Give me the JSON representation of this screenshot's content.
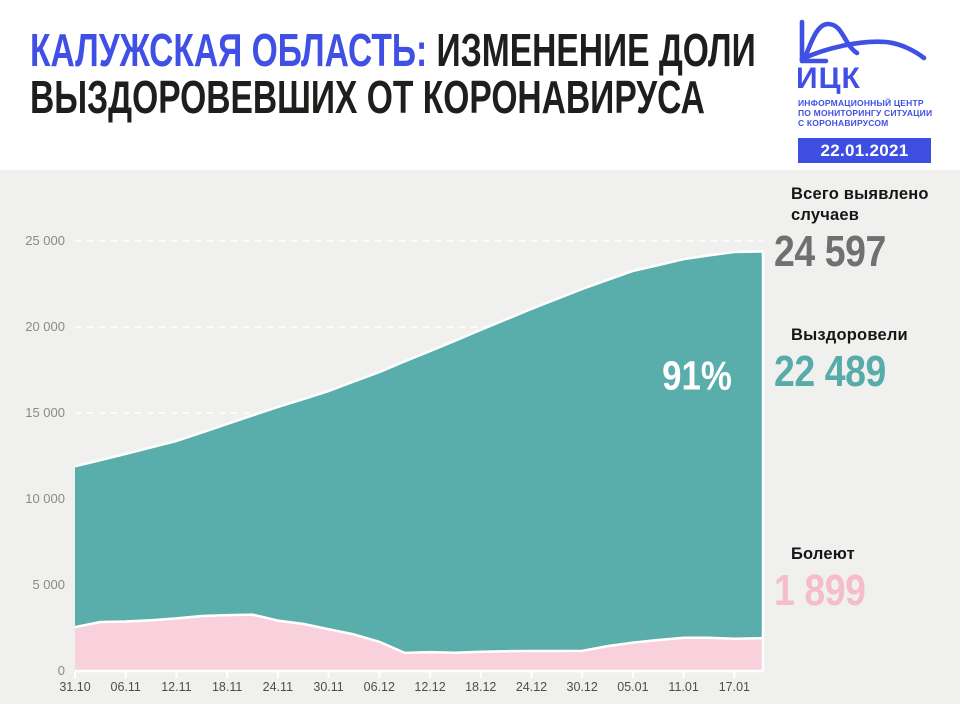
{
  "header": {
    "title_highlight": "КАЛУЖСКАЯ ОБЛАСТЬ:",
    "title_rest_line1": "ИЗМЕНЕНИЕ ДОЛИ",
    "title_line2": "ВЫЗДОРОВЕВШИХ ОТ КОРОНАВИРУСА",
    "logo": {
      "abbr": "ИЦК",
      "subtitle_line1": "ИНФОРМАЦИОННЫЙ ЦЕНТР",
      "subtitle_line2": "ПО МОНИТОРИНГУ СИТУАЦИИ",
      "subtitle_line3": "С КОРОНАВИРУСОМ"
    },
    "date_badge": "22.01.2021"
  },
  "stats": {
    "total": {
      "label": "Всего выявлено случаев",
      "value": "24 597"
    },
    "recovered": {
      "label": "Выздоровели",
      "value": "22 489"
    },
    "sick": {
      "label": "Болеют",
      "value": "1 899"
    }
  },
  "colors": {
    "accent_blue": "#4150e4",
    "badge_bg": "#3e4ee2",
    "title_dark": "#1e1e1c",
    "teal_fill": "#59adaa",
    "pink_fill": "#f9d1dc",
    "teal_number": "#57aba8",
    "pink_number": "#f5bccb",
    "grey_number": "#6e716f",
    "board_bg": "#f0f0ef",
    "grid_white": "#ffffff",
    "y_label_grey": "#8a8a8a",
    "x_label_grey": "#4d4d4d"
  },
  "chart_data": {
    "type": "area",
    "stacked": true,
    "title": "Изменение доли выздоровевших от коронавируса (Калужская область)",
    "share_label": "91%",
    "grid": "dashed-horizontal",
    "legend": "none",
    "ylim": [
      0,
      25000
    ],
    "y_ticks": [
      0,
      5000,
      10000,
      15000,
      20000,
      25000
    ],
    "y_tick_labels": [
      "0",
      "5 000",
      "10 000",
      "15 000",
      "20 000",
      "25 000"
    ],
    "x_tick_labels": [
      "31.10",
      "06.11",
      "12.11",
      "18.11",
      "24.11",
      "30.11",
      "06.12",
      "12.12",
      "18.12",
      "24.12",
      "30.12",
      "05.01",
      "11.01",
      "17.01"
    ],
    "x_tick_days": [
      0,
      6,
      12,
      18,
      24,
      30,
      36,
      42,
      48,
      54,
      60,
      66,
      72,
      78
    ],
    "days": [
      0,
      3,
      6,
      9,
      12,
      15,
      18,
      21,
      24,
      27,
      30,
      33,
      36,
      39,
      42,
      45,
      48,
      51,
      54,
      57,
      60,
      63,
      66,
      69,
      72,
      75,
      78,
      81
    ],
    "series": [
      {
        "name": "Болеют",
        "color_key": "pink_fill",
        "values": [
          2550,
          2850,
          2880,
          2950,
          3060,
          3200,
          3250,
          3280,
          2930,
          2740,
          2430,
          2130,
          1700,
          1050,
          1100,
          1060,
          1120,
          1150,
          1160,
          1160,
          1170,
          1450,
          1650,
          1800,
          1930,
          1930,
          1880,
          1899
        ]
      },
      {
        "name": "Выздоровели",
        "color_key": "teal_fill",
        "values": [
          9350,
          9410,
          9740,
          10050,
          10310,
          10660,
          11110,
          11580,
          12420,
          13060,
          13850,
          14700,
          15680,
          16950,
          17500,
          18150,
          18710,
          19290,
          19890,
          20470,
          21040,
          21290,
          21610,
          21800,
          22020,
          22230,
          22480,
          22489
        ]
      }
    ]
  }
}
